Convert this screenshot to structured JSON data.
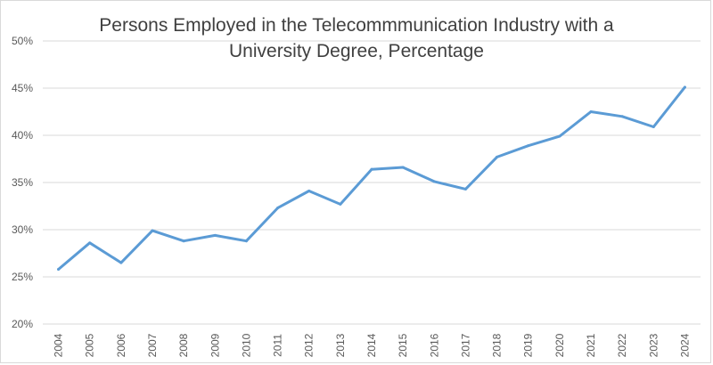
{
  "chart_data": {
    "type": "line",
    "title_lines": [
      "Persons Employed in the Telecommmunication Industry with a",
      "University Degree, Percentage"
    ],
    "x": [
      "2004",
      "2005",
      "2006",
      "2007",
      "2008",
      "2009",
      "2010",
      "2011",
      "2012",
      "2013",
      "2014",
      "2015",
      "2016",
      "2017",
      "2018",
      "2019",
      "2020",
      "2021",
      "2022",
      "2023",
      "2024"
    ],
    "series": [
      {
        "values": [
          25.8,
          28.6,
          26.5,
          29.9,
          28.8,
          29.4,
          28.8,
          32.3,
          34.1,
          32.7,
          36.4,
          36.6,
          35.1,
          34.3,
          37.7,
          38.9,
          39.9,
          42.5,
          42.0,
          40.9,
          45.1
        ],
        "color": "#5b9bd5"
      }
    ],
    "ylim": [
      20,
      50
    ],
    "y_ticks": [
      20,
      25,
      30,
      35,
      40,
      45,
      50
    ],
    "y_tick_format": "{}%",
    "xlabel": "",
    "ylabel": "",
    "grid": true,
    "legend": "none"
  }
}
